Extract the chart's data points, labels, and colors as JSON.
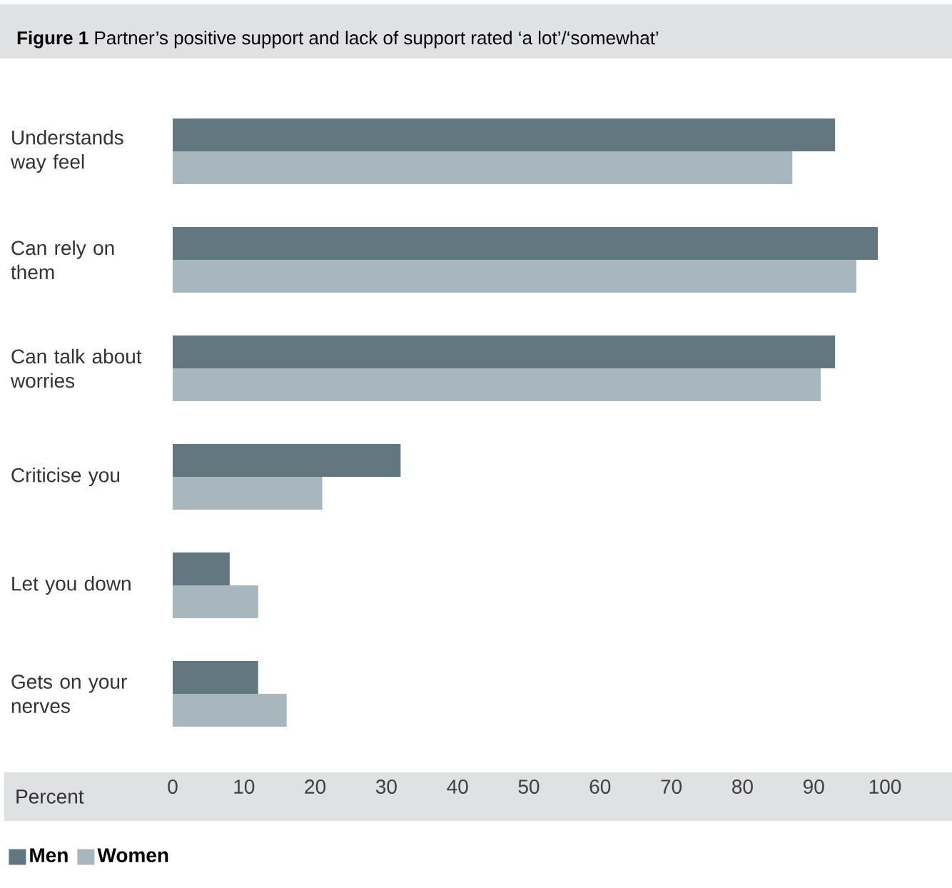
{
  "chart_data": {
    "type": "bar",
    "orientation": "horizontal",
    "title": "**Figure 1** Partner’s positive support and lack of support rated ‘a lot’/‘somewhat’",
    "xlabel": "Percent",
    "categories": [
      "Understands way feel",
      "Can rely on them",
      "Can talk about worries",
      "Criticise you",
      "Let you down",
      "Gets on your nerves"
    ],
    "series": [
      {
        "name": "Men",
        "color": "#637780",
        "values": [
          93,
          99,
          93,
          32,
          8,
          12
        ]
      },
      {
        "name": "Women",
        "color": "#a8b6bd",
        "values": [
          87,
          96,
          91,
          21,
          12,
          16
        ]
      }
    ],
    "xlim": [
      0,
      100
    ],
    "xticks": [
      0,
      10,
      20,
      30,
      40,
      50,
      60,
      70,
      80,
      90,
      100
    ],
    "legend": "bottom left"
  }
}
